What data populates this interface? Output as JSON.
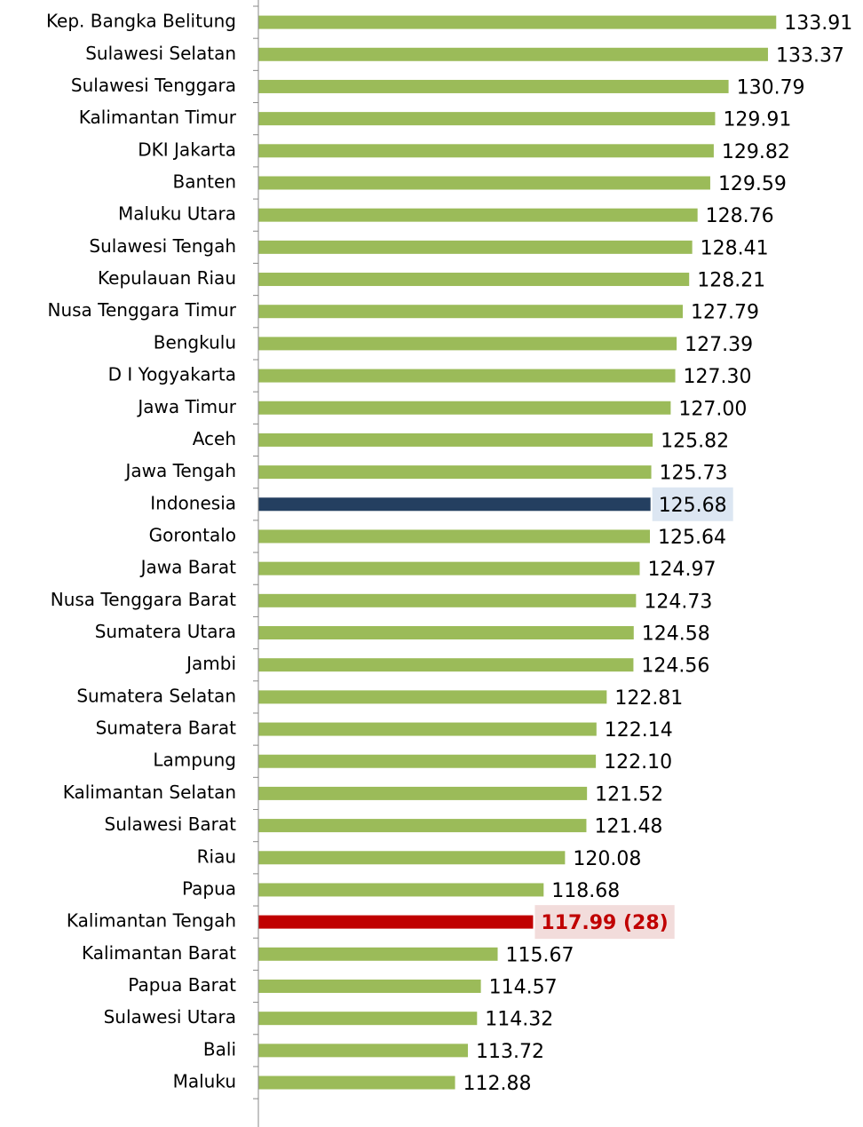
{
  "chart_data": {
    "type": "bar",
    "orientation": "horizontal",
    "categories": [
      "Kep. Bangka Belitung",
      "Sulawesi Selatan",
      "Sulawesi Tenggara",
      "Kalimantan Timur",
      "DKI Jakarta",
      "Banten",
      "Maluku Utara",
      "Sulawesi Tengah",
      "Kepulauan Riau",
      "Nusa Tenggara Timur",
      "Bengkulu",
      "D I Yogyakarta",
      "Jawa Timur",
      "Aceh",
      "Jawa Tengah",
      "Indonesia",
      "Gorontalo",
      "Jawa Barat",
      "Nusa Tenggara Barat",
      "Sumatera Utara",
      "Jambi",
      "Sumatera Selatan",
      "Sumatera Barat",
      "Lampung",
      "Kalimantan Selatan",
      "Sulawesi Barat",
      "Riau",
      "Papua",
      "Kalimantan Tengah",
      "Kalimantan Barat",
      "Papua Barat",
      "Sulawesi Utara",
      "Bali",
      "Maluku"
    ],
    "values": [
      133.91,
      133.37,
      130.79,
      129.91,
      129.82,
      129.59,
      128.76,
      128.41,
      128.21,
      127.79,
      127.39,
      127.3,
      127.0,
      125.82,
      125.73,
      125.68,
      125.64,
      124.97,
      124.73,
      124.58,
      124.56,
      122.81,
      122.14,
      122.1,
      121.52,
      121.48,
      120.08,
      118.68,
      117.99,
      115.67,
      114.57,
      114.32,
      113.72,
      112.88
    ],
    "value_labels": [
      "133.91",
      "133.37",
      "130.79",
      "129.91",
      "129.82",
      "129.59",
      "128.76",
      "128.41",
      "128.21",
      "127.79",
      "127.39",
      "127.30",
      "127.00",
      "125.82",
      "125.73",
      "125.68",
      "125.64",
      "124.97",
      "124.73",
      "124.58",
      "124.56",
      "122.81",
      "122.14",
      "122.10",
      "121.52",
      "121.48",
      "120.08",
      "118.68",
      "117.99 (28)",
      "115.67",
      "114.57",
      "114.32",
      "113.72",
      "112.88"
    ],
    "colors": [
      "#9bbb59",
      "#9bbb59",
      "#9bbb59",
      "#9bbb59",
      "#9bbb59",
      "#9bbb59",
      "#9bbb59",
      "#9bbb59",
      "#9bbb59",
      "#9bbb59",
      "#9bbb59",
      "#9bbb59",
      "#9bbb59",
      "#9bbb59",
      "#9bbb59",
      "#243f60",
      "#9bbb59",
      "#9bbb59",
      "#9bbb59",
      "#9bbb59",
      "#9bbb59",
      "#9bbb59",
      "#9bbb59",
      "#9bbb59",
      "#9bbb59",
      "#9bbb59",
      "#9bbb59",
      "#9bbb59",
      "#c00000",
      "#9bbb59",
      "#9bbb59",
      "#9bbb59",
      "#9bbb59",
      "#9bbb59"
    ],
    "xlim": [
      100,
      135
    ]
  }
}
